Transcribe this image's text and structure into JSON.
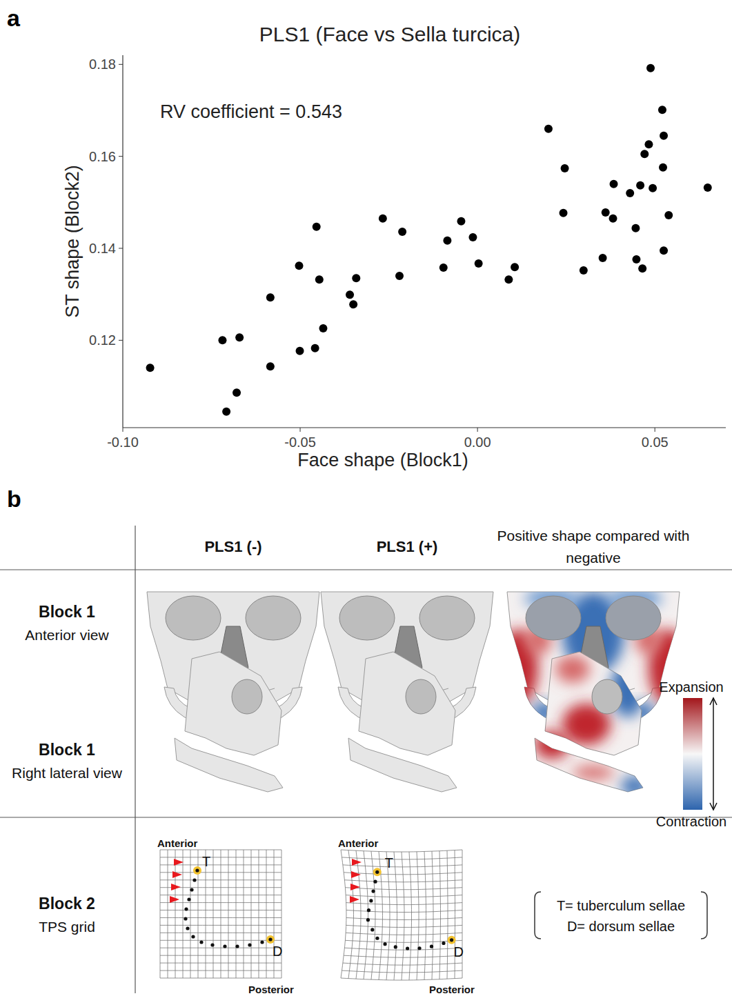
{
  "chart_data": {
    "type": "scatter",
    "title": "PLS1 (Face vs Sella turcica)",
    "x_label": "Face shape (Block1)",
    "y_label": "ST shape (Block2)",
    "annotation": "RV coefficient = 0.543",
    "xlim": [
      -0.1,
      0.07
    ],
    "ylim": [
      0.101,
      0.182
    ],
    "xticks": [
      {
        "value": -0.1,
        "label": "-0.10"
      },
      -0.05,
      {
        "value": 0,
        "label": "0.00"
      },
      0.05
    ],
    "yticks": [
      0.12,
      0.14,
      0.16,
      0.18
    ],
    "color": "#000000",
    "marker": "circle",
    "grid": false,
    "x": [
      -0.0923,
      -0.0719,
      -0.0708,
      -0.0679,
      -0.0671,
      -0.0584,
      -0.0584,
      -0.0503,
      -0.0501,
      -0.0454,
      -0.0446,
      -0.0458,
      -0.0435,
      -0.036,
      -0.035,
      -0.0342,
      -0.0267,
      -0.0212,
      -0.022,
      -0.0096,
      -0.0085,
      -0.0046,
      -0.0013,
      0.0003,
      0.0088,
      0.0105,
      0.02,
      0.0246,
      0.0242,
      0.0299,
      0.0353,
      0.0361,
      0.0382,
      0.0384,
      0.043,
      0.0446,
      0.0448,
      0.0459,
      0.0465,
      0.0471,
      0.0483,
      0.0488,
      0.0494,
      0.0521,
      0.0525,
      0.0523,
      0.0525,
      0.0539,
      0.0649
    ],
    "values": [
      0.114,
      0.12,
      0.1045,
      0.1086,
      0.1206,
      0.1293,
      0.1143,
      0.1362,
      0.1177,
      0.1447,
      0.1332,
      0.1183,
      0.1226,
      0.1299,
      0.1278,
      0.1335,
      0.1465,
      0.1436,
      0.134,
      0.1358,
      0.1417,
      0.1459,
      0.1424,
      0.1367,
      0.1332,
      0.1359,
      0.166,
      0.1574,
      0.1477,
      0.1352,
      0.1379,
      0.1478,
      0.1465,
      0.154,
      0.152,
      0.1444,
      0.1376,
      0.1537,
      0.1356,
      0.1605,
      0.1626,
      0.1792,
      0.1531,
      0.1701,
      0.1645,
      0.1576,
      0.1395,
      0.1472,
      0.1532
    ]
  },
  "figure": {
    "panel_a_label": "a",
    "panel_b_label": "b",
    "columns": [
      "PLS1 (-)",
      "PLS1 (+)",
      "Positive shape compared with negative"
    ],
    "rows": [
      {
        "title": "Block 1",
        "subtitle": "Anterior view"
      },
      {
        "title": "Block 1",
        "subtitle": "Right lateral view"
      },
      {
        "title": "Block 2",
        "subtitle": "TPS grid"
      }
    ],
    "colorbar": {
      "high": "Expansion",
      "low": "Contraction"
    },
    "tps": {
      "anterior": "Anterior",
      "posterior": "Posterior",
      "t": "T",
      "d": "D"
    },
    "key": [
      "T= tuberculum sellae",
      "D= dorsum sellae"
    ]
  }
}
